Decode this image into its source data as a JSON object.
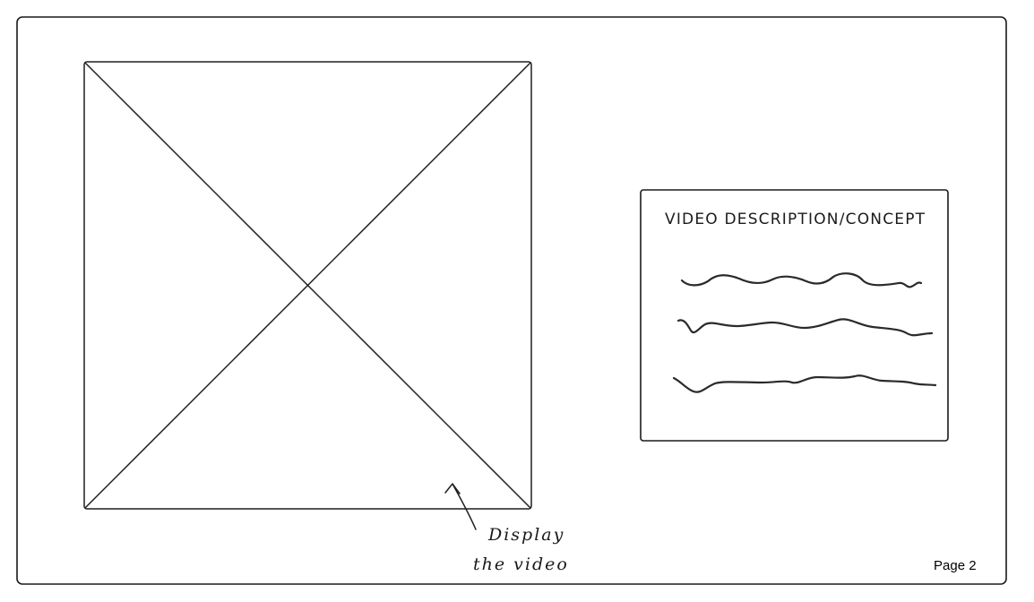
{
  "description_panel": {
    "title": "VIDEO DESCRIPTION/CONCEPT"
  },
  "video_placeholder": {
    "annotation_line1": "Display",
    "annotation_line2": "the video"
  },
  "footer": {
    "page_label": "Page 2"
  },
  "icons": {
    "annotation_arrow": "up-left-arrow-icon"
  },
  "colors": {
    "ink": "#1a1a1a",
    "background": "#ffffff"
  }
}
